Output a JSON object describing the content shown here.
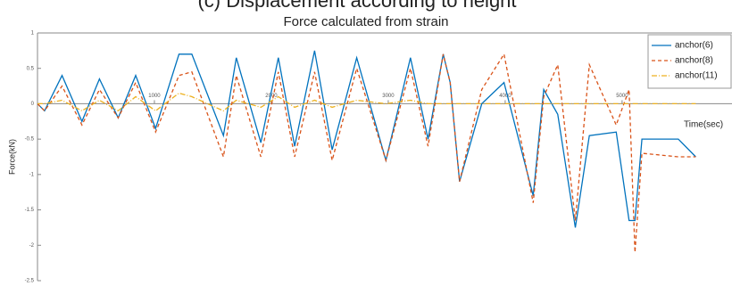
{
  "chart_data": {
    "type": "line",
    "supertitle": "(c) Displacement according to height",
    "title": "Force calculated from strain",
    "ylabel": "Force(kN)",
    "xlabel": "Time(sec)",
    "x": [
      0,
      60,
      210,
      380,
      530,
      690,
      840,
      1010,
      1210,
      1320,
      1590,
      1700,
      1910,
      2060,
      2200,
      2370,
      2520,
      2730,
      2980,
      3190,
      3340,
      3470,
      3530,
      3610,
      3800,
      3990,
      4240,
      4330,
      4450,
      4600,
      4720,
      4950,
      5060,
      5110,
      5170,
      5480,
      5630
    ],
    "series": [
      {
        "name": "anchor(6)",
        "color": "#0072bd",
        "dash": "none",
        "values": [
          0,
          -0.1,
          0.4,
          -0.25,
          0.35,
          -0.2,
          0.4,
          -0.35,
          0.7,
          0.7,
          -0.45,
          0.65,
          -0.55,
          0.65,
          -0.6,
          0.75,
          -0.65,
          0.65,
          -0.8,
          0.65,
          -0.5,
          0.7,
          0.3,
          -1.1,
          0,
          0.3,
          -1.3,
          0.2,
          -0.15,
          -1.75,
          -0.45,
          -0.4,
          -1.65,
          -1.65,
          -0.5,
          -0.5,
          -0.75
        ]
      },
      {
        "name": "anchor(8)",
        "color": "#d95319",
        "dash": "4 3",
        "values": [
          0,
          -0.1,
          0.25,
          -0.3,
          0.2,
          -0.2,
          0.3,
          -0.4,
          0.4,
          0.45,
          -0.75,
          0.4,
          -0.75,
          0.45,
          -0.75,
          0.45,
          -0.8,
          0.5,
          -0.8,
          0.5,
          -0.6,
          0.7,
          0.3,
          -1.1,
          0.2,
          0.7,
          -1.4,
          0.1,
          0.55,
          -1.65,
          0.55,
          -0.3,
          0.2,
          -2.1,
          -0.7,
          -0.75,
          -0.75
        ]
      },
      {
        "name": "anchor(11)",
        "color": "#edb120",
        "dash": "6 2 1 2",
        "values": [
          0,
          0,
          0.05,
          -0.1,
          0.05,
          -0.1,
          0.1,
          -0.1,
          0.15,
          0.1,
          -0.1,
          0.05,
          -0.05,
          0.1,
          -0.05,
          0.05,
          -0.05,
          0.05,
          0,
          0.05,
          0,
          0,
          0,
          0,
          0,
          0,
          0,
          0,
          0,
          0,
          0,
          0,
          0,
          0,
          0,
          0,
          0
        ]
      }
    ],
    "xlim": [
      0,
      5940
    ],
    "xticks": [
      1000,
      2000,
      3000,
      4000,
      5000
    ],
    "ylim": [
      -2.5,
      1
    ],
    "yticks": [
      1,
      0.5,
      0,
      -0.5,
      -1,
      -1.5,
      -2,
      -2.5
    ],
    "legend": "upper right"
  }
}
